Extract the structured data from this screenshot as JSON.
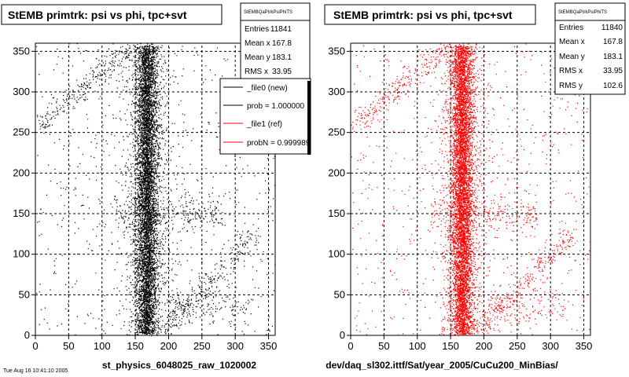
{
  "chart_data": [
    {
      "type": "scatter",
      "title": "StEMB primtrk: psi vs phi, tpc+svt",
      "xlabel": "st_physics_6048025_raw_1020002",
      "ylabel": "",
      "xlim": [
        0,
        360
      ],
      "ylim": [
        0,
        360
      ],
      "x_ticks": [
        "0",
        "50",
        "100",
        "150",
        "200",
        "250",
        "300",
        "350"
      ],
      "y_ticks": [
        "0",
        "50",
        "100",
        "150",
        "200",
        "250",
        "300",
        "350"
      ],
      "grid": true,
      "marker_color": "#000000",
      "stats": {
        "name": "StEMBQaPtrkPsiPhiTS",
        "rows": [
          {
            "label": "Entries",
            "value": "11841"
          },
          {
            "label": "Mean x",
            "value": "167.8"
          },
          {
            "label": "Mean y",
            "value": "183.1"
          },
          {
            "label": "RMS x",
            "value": "33.95"
          }
        ]
      },
      "legend": {
        "position": "top-right",
        "entries": [
          {
            "label": "_file0 (new)",
            "color": "#000000"
          },
          {
            "label": "prob = 1.000000",
            "color": "#000000"
          },
          {
            "label": "_file1 (ref)",
            "color": "#ff0000"
          },
          {
            "label": "probN = 0.999989",
            "color": "#ff0000"
          }
        ]
      },
      "footnote": "Tue Aug 16 10:41:10 2005"
    },
    {
      "type": "scatter",
      "title": "StEMB primtrk: psi vs phi, tpc+svt",
      "xlabel": "dev/daq_sl302.ittf/Sat/year_2005/CuCu200_MinBias/",
      "ylabel": "",
      "xlim": [
        0,
        360
      ],
      "ylim": [
        0,
        360
      ],
      "x_ticks": [
        "0",
        "50",
        "100",
        "150",
        "200",
        "250",
        "300",
        "350"
      ],
      "y_ticks": [
        "0",
        "50",
        "100",
        "150",
        "200",
        "250",
        "300",
        "350"
      ],
      "grid": true,
      "marker_color": "#ff0000",
      "stats": {
        "name": "StEMBQaPtrkPsiPhiTS",
        "rows": [
          {
            "label": "Entries",
            "value": "11840"
          },
          {
            "label": "Mean x",
            "value": "167.8"
          },
          {
            "label": "Mean y",
            "value": "183.1"
          },
          {
            "label": "RMS x",
            "value": "33.95"
          },
          {
            "label": "RMS y",
            "value": "102.6"
          }
        ]
      }
    }
  ]
}
